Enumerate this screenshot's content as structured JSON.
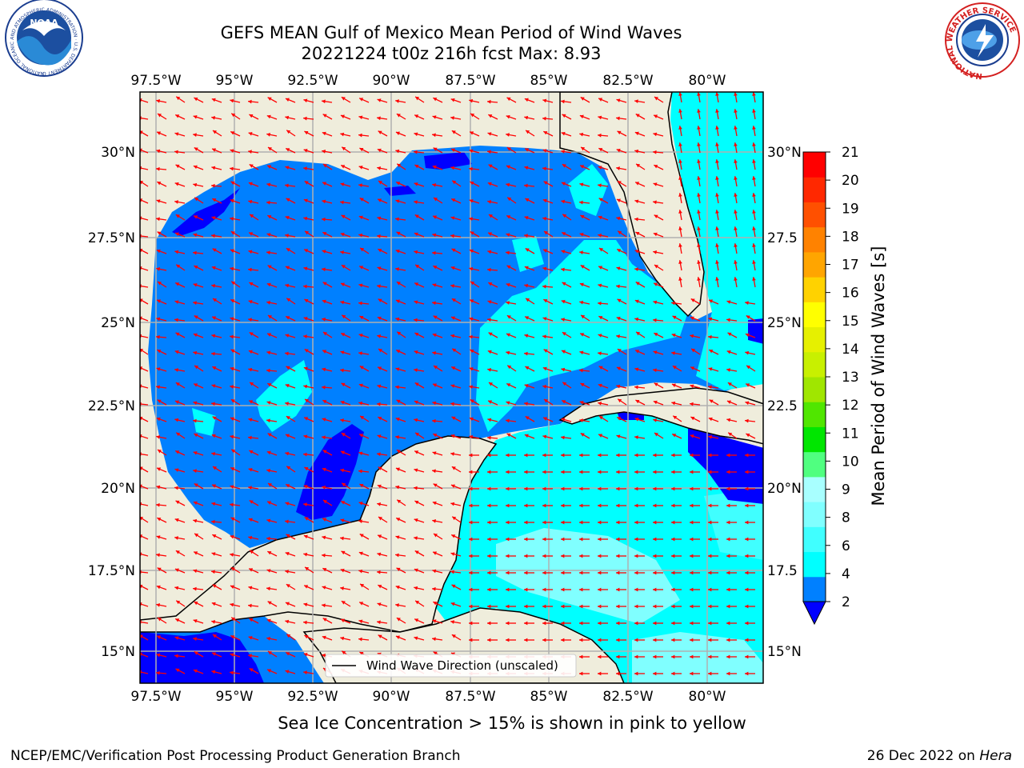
{
  "header": {
    "title_line1": "GEFS MEAN Gulf of Mexico Mean Period of Wind Waves",
    "title_line2": "20221224 t00z 216h fcst   Max: 8.93"
  },
  "logos": {
    "left": {
      "name": "NOAA",
      "ring_text": "NATIONAL OCEANIC AND ATMOSPHERIC ADMINISTRATION · U.S. DEPARTMENT OF COMMERCE",
      "label": "NOAA"
    },
    "right": {
      "name": "National Weather Service",
      "ring_text": "NATIONAL WEATHER SERVICE"
    }
  },
  "map": {
    "lon_ticks": [
      "97.5°W",
      "95°W",
      "92.5°W",
      "90°W",
      "87.5°W",
      "85°W",
      "82.5°W",
      "80°W"
    ],
    "lat_ticks_left": [
      "30°N",
      "27.5°N",
      "25°N",
      "22.5°N",
      "20°N",
      "17.5°N",
      "15°N"
    ],
    "lat_ticks_right": [
      "30°N",
      "27.5",
      "25°N",
      "22.5",
      "20°N",
      "17.5",
      "15°N"
    ],
    "legend_label": "Wind Wave Direction (unscaled)",
    "colors": {
      "land": "#efeddc",
      "grid": "#b0b0b0",
      "arrow": "#ff0000"
    }
  },
  "colorbar": {
    "label": "Mean Period of Wind Waves [s]",
    "ticks": [
      "2",
      "4",
      "6",
      "8",
      "9",
      "10",
      "11",
      "12",
      "13",
      "14",
      "15",
      "16",
      "17",
      "18",
      "19",
      "20",
      "21"
    ],
    "colors": [
      "#0080ff",
      "#00ffff",
      "#40ffff",
      "#80ffff",
      "#a8ffff",
      "#50ff80",
      "#00e600",
      "#50e600",
      "#a0e600",
      "#c8f000",
      "#e6f000",
      "#ffff00",
      "#ffd200",
      "#ffa500",
      "#ff8200",
      "#ff5000",
      "#ff2800",
      "#ff0000"
    ],
    "under_color": "#0000ff"
  },
  "footnote": "Sea Ice Concentration > 15% is shown in pink to yellow",
  "footer": {
    "left": "NCEP/EMC/Verification Post Processing Product Generation Branch",
    "date": "26 Dec 2022 on ",
    "host": "Hera"
  }
}
